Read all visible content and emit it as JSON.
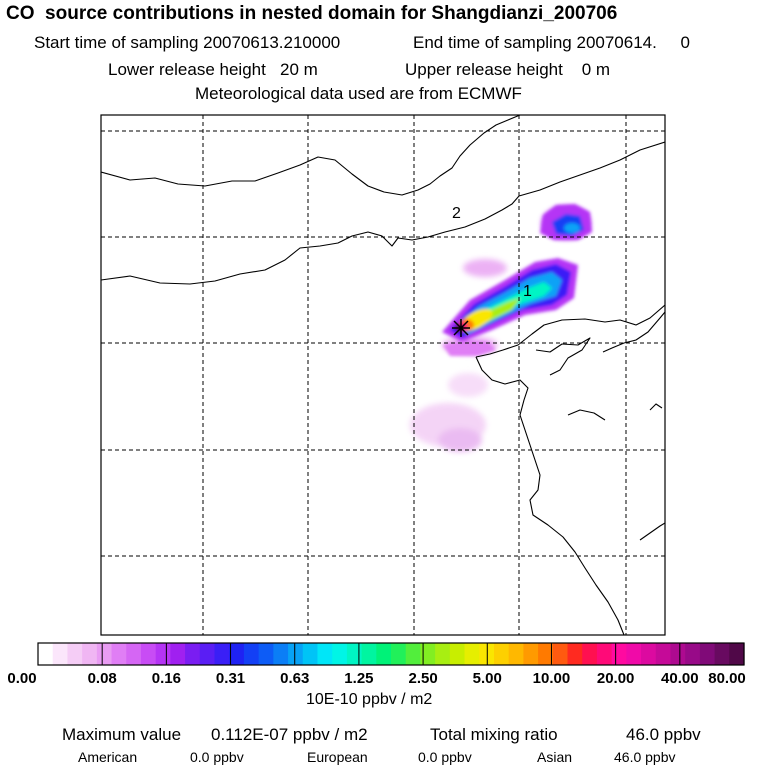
{
  "header": {
    "title": "CO  source contributions in nested domain for Shangdianzi_200706",
    "start_label": "Start time of sampling",
    "start_value": "20070613.210000",
    "end_label": "End time of sampling",
    "end_value": "20070614.     0",
    "lower_label": "Lower release height",
    "lower_value": "20 m",
    "upper_label": "Upper release height",
    "upper_value": "0 m",
    "met_text": "Meteorological data used are from ECMWF"
  },
  "map": {
    "contour_labels": [
      "1",
      "2"
    ],
    "receptor_marker": "star-icon"
  },
  "colorbar": {
    "ticks": [
      "0.00",
      "0.08",
      "0.16",
      "0.31",
      "0.63",
      "1.25",
      "2.50",
      "5.00",
      "10.00",
      "20.00",
      "40.00",
      "80.00"
    ],
    "units": "10E-10 ppbv / m2",
    "colors": [
      "#ffffff",
      "#fbe6fb",
      "#f5cdf6",
      "#f0b6f3",
      "#e99cf3",
      "#e07ef5",
      "#d566f4",
      "#c84cf5",
      "#b534f5",
      "#a020f0",
      "#7a1df2",
      "#5a1ef4",
      "#3a1ff6",
      "#1f22f3",
      "#1340f5",
      "#0d5cf6",
      "#0b7ef6",
      "#07a2f6",
      "#00c4f6",
      "#00e6f8",
      "#00f5e6",
      "#00f5c4",
      "#00f5a0",
      "#00f278",
      "#21f05a",
      "#52ee3c",
      "#82ee22",
      "#a8ee12",
      "#c8ee00",
      "#e6ee00",
      "#fae600",
      "#fdd000",
      "#ffb800",
      "#ff9a00",
      "#ff7a00",
      "#ff5a10",
      "#ff2a20",
      "#ff1050",
      "#ff0a78",
      "#ff0aa0",
      "#f00aa8",
      "#dc0aa0",
      "#c50a98",
      "#ae0a90",
      "#980a88",
      "#800a78",
      "#680a60",
      "#500848"
    ]
  },
  "footer": {
    "max_label": "Maximum value",
    "max_value": "0.112E-07 ppbv / m2",
    "total_label": "Total mixing ratio",
    "total_value": "46.0 ppbv",
    "regions": [
      {
        "name": "American",
        "value": "0.0 ppbv"
      },
      {
        "name": "European",
        "value": "0.0 ppbv"
      },
      {
        "name": "Asian",
        "value": "46.0 ppbv"
      }
    ]
  }
}
